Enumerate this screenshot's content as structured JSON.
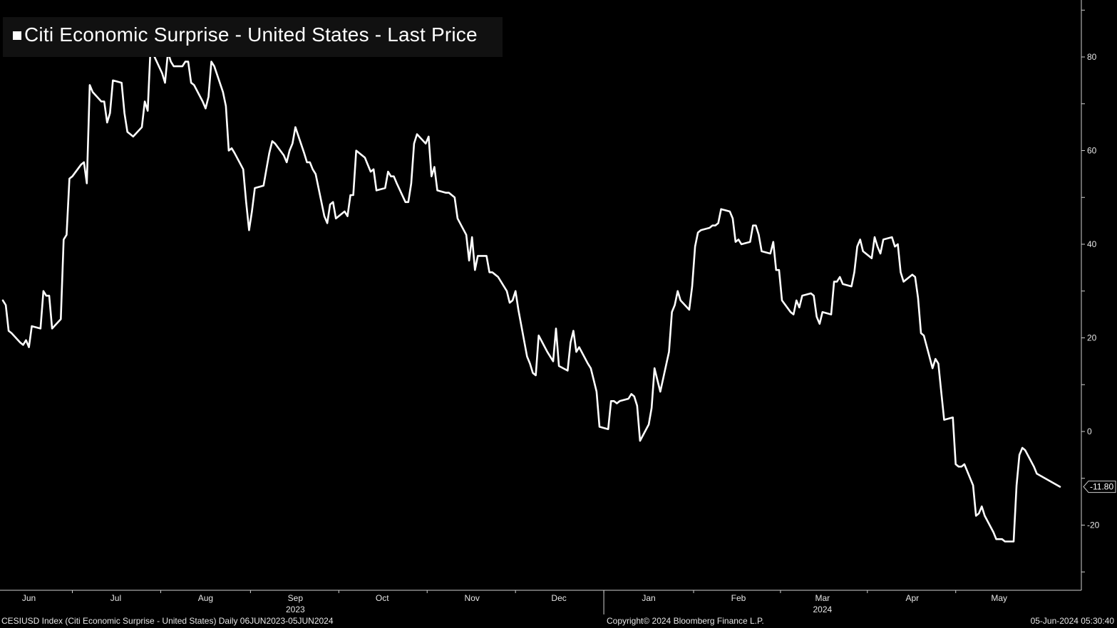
{
  "colors": {
    "background": "#000000",
    "line": "#ffffff",
    "axis": "#cfcfcf",
    "legend_background": "#111111"
  },
  "legend": {
    "label": "Citi Economic Surprise - United States - Last Price"
  },
  "footer": {
    "left": "CESIUSD Index (Citi Economic Surprise - United States)  Daily 06JUN2023-05JUN2024",
    "center": "Copyright© 2024 Bloomberg Finance L.P.",
    "right": "05-Jun-2024 05:30:40"
  },
  "chart_data": {
    "type": "line",
    "title": "",
    "xlabel": "",
    "ylabel": "",
    "ylim": [
      -30,
      90
    ],
    "y_ticks": [
      -20,
      0,
      20,
      40,
      60,
      80
    ],
    "y_axis_position": "right",
    "grid": false,
    "legend_position": "top-left",
    "last_value_label": "-11.80",
    "x_range": [
      "2023-06-06",
      "2024-06-05"
    ],
    "month_ticks": [
      {
        "label": "Jun",
        "date": "2023-06-15"
      },
      {
        "label": "Jul",
        "date": "2023-07-15"
      },
      {
        "label": "Aug",
        "date": "2023-08-15"
      },
      {
        "label": "Sep",
        "date": "2023-09-15"
      },
      {
        "label": "Oct",
        "date": "2023-10-15"
      },
      {
        "label": "Nov",
        "date": "2023-11-15"
      },
      {
        "label": "Dec",
        "date": "2023-12-15"
      },
      {
        "label": "Jan",
        "date": "2024-01-15"
      },
      {
        "label": "Feb",
        "date": "2024-02-15"
      },
      {
        "label": "Mar",
        "date": "2024-03-15"
      },
      {
        "label": "Apr",
        "date": "2024-04-15"
      },
      {
        "label": "May",
        "date": "2024-05-15"
      }
    ],
    "year_labels": [
      {
        "label": "2023",
        "date": "2023-09-15"
      },
      {
        "label": "2024",
        "date": "2024-03-15"
      }
    ],
    "series": [
      {
        "name": "Citi Economic Surprise - United States - Last Price",
        "points": [
          [
            "2023-06-06",
            28.0
          ],
          [
            "2023-06-07",
            27.0
          ],
          [
            "2023-06-08",
            21.5
          ],
          [
            "2023-06-09",
            21.0
          ],
          [
            "2023-06-12",
            19.0
          ],
          [
            "2023-06-13",
            18.5
          ],
          [
            "2023-06-14",
            19.5
          ],
          [
            "2023-06-15",
            18.0
          ],
          [
            "2023-06-16",
            22.5
          ],
          [
            "2023-06-19",
            22.0
          ],
          [
            "2023-06-20",
            30.0
          ],
          [
            "2023-06-21",
            29.0
          ],
          [
            "2023-06-22",
            29.0
          ],
          [
            "2023-06-23",
            22.0
          ],
          [
            "2023-06-26",
            24.0
          ],
          [
            "2023-06-27",
            41.0
          ],
          [
            "2023-06-28",
            42.0
          ],
          [
            "2023-06-29",
            54.0
          ],
          [
            "2023-06-30",
            54.5
          ],
          [
            "2023-07-03",
            57.0
          ],
          [
            "2023-07-04",
            57.5
          ],
          [
            "2023-07-05",
            53.0
          ],
          [
            "2023-07-06",
            74.0
          ],
          [
            "2023-07-07",
            72.5
          ],
          [
            "2023-07-10",
            70.5
          ],
          [
            "2023-07-11",
            70.5
          ],
          [
            "2023-07-12",
            66.0
          ],
          [
            "2023-07-13",
            68.0
          ],
          [
            "2023-07-14",
            75.0
          ],
          [
            "2023-07-17",
            74.5
          ],
          [
            "2023-07-18",
            68.0
          ],
          [
            "2023-07-19",
            64.0
          ],
          [
            "2023-07-20",
            63.5
          ],
          [
            "2023-07-21",
            63.0
          ],
          [
            "2023-07-24",
            65.0
          ],
          [
            "2023-07-25",
            70.5
          ],
          [
            "2023-07-26",
            68.5
          ],
          [
            "2023-07-27",
            82.0
          ],
          [
            "2023-07-28",
            80.5
          ],
          [
            "2023-07-31",
            76.5
          ],
          [
            "2023-08-01",
            74.5
          ],
          [
            "2023-08-02",
            81.0
          ],
          [
            "2023-08-03",
            79.0
          ],
          [
            "2023-08-04",
            78.0
          ],
          [
            "2023-08-07",
            78.0
          ],
          [
            "2023-08-08",
            79.0
          ],
          [
            "2023-08-09",
            79.0
          ],
          [
            "2023-08-10",
            74.5
          ],
          [
            "2023-08-11",
            74.0
          ],
          [
            "2023-08-14",
            70.5
          ],
          [
            "2023-08-15",
            69.0
          ],
          [
            "2023-08-16",
            71.5
          ],
          [
            "2023-08-17",
            79.0
          ],
          [
            "2023-08-18",
            78.0
          ],
          [
            "2023-08-21",
            72.5
          ],
          [
            "2023-08-22",
            69.5
          ],
          [
            "2023-08-23",
            60.0
          ],
          [
            "2023-08-24",
            60.5
          ],
          [
            "2023-08-25",
            59.5
          ],
          [
            "2023-08-28",
            56.0
          ],
          [
            "2023-08-29",
            49.0
          ],
          [
            "2023-08-30",
            43.0
          ],
          [
            "2023-08-31",
            47.0
          ],
          [
            "2023-09-01",
            52.0
          ],
          [
            "2023-09-04",
            52.5
          ],
          [
            "2023-09-05",
            56.0
          ],
          [
            "2023-09-06",
            59.5
          ],
          [
            "2023-09-07",
            62.0
          ],
          [
            "2023-09-08",
            61.5
          ],
          [
            "2023-09-11",
            59.0
          ],
          [
            "2023-09-12",
            57.5
          ],
          [
            "2023-09-13",
            60.0
          ],
          [
            "2023-09-14",
            61.5
          ],
          [
            "2023-09-15",
            65.0
          ],
          [
            "2023-09-18",
            59.5
          ],
          [
            "2023-09-19",
            57.5
          ],
          [
            "2023-09-20",
            57.5
          ],
          [
            "2023-09-21",
            56.0
          ],
          [
            "2023-09-22",
            55.0
          ],
          [
            "2023-09-25",
            46.0
          ],
          [
            "2023-09-26",
            44.5
          ],
          [
            "2023-09-27",
            48.5
          ],
          [
            "2023-09-28",
            49.0
          ],
          [
            "2023-09-29",
            45.5
          ],
          [
            "2023-10-02",
            47.0
          ],
          [
            "2023-10-03",
            46.0
          ],
          [
            "2023-10-04",
            50.5
          ],
          [
            "2023-10-05",
            50.5
          ],
          [
            "2023-10-06",
            60.0
          ],
          [
            "2023-10-09",
            58.5
          ],
          [
            "2023-10-10",
            57.0
          ],
          [
            "2023-10-11",
            55.5
          ],
          [
            "2023-10-12",
            56.0
          ],
          [
            "2023-10-13",
            51.5
          ],
          [
            "2023-10-16",
            52.0
          ],
          [
            "2023-10-17",
            55.5
          ],
          [
            "2023-10-18",
            54.5
          ],
          [
            "2023-10-19",
            54.5
          ],
          [
            "2023-10-20",
            53.0
          ],
          [
            "2023-10-23",
            49.0
          ],
          [
            "2023-10-24",
            49.0
          ],
          [
            "2023-10-25",
            53.0
          ],
          [
            "2023-10-26",
            61.5
          ],
          [
            "2023-10-27",
            63.5
          ],
          [
            "2023-10-30",
            61.5
          ],
          [
            "2023-10-31",
            63.0
          ],
          [
            "2023-11-01",
            54.5
          ],
          [
            "2023-11-02",
            56.5
          ],
          [
            "2023-11-03",
            51.5
          ],
          [
            "2023-11-06",
            51.0
          ],
          [
            "2023-11-07",
            51.0
          ],
          [
            "2023-11-08",
            50.5
          ],
          [
            "2023-11-09",
            50.0
          ],
          [
            "2023-11-10",
            45.5
          ],
          [
            "2023-11-13",
            42.0
          ],
          [
            "2023-11-14",
            36.5
          ],
          [
            "2023-11-15",
            41.5
          ],
          [
            "2023-11-16",
            34.5
          ],
          [
            "2023-11-17",
            37.5
          ],
          [
            "2023-11-20",
            37.5
          ],
          [
            "2023-11-21",
            34.0
          ],
          [
            "2023-11-22",
            34.0
          ],
          [
            "2023-11-23",
            33.5
          ],
          [
            "2023-11-24",
            33.0
          ],
          [
            "2023-11-27",
            30.0
          ],
          [
            "2023-11-28",
            27.5
          ],
          [
            "2023-11-29",
            28.0
          ],
          [
            "2023-11-30",
            30.0
          ],
          [
            "2023-12-01",
            26.0
          ],
          [
            "2023-12-04",
            16.0
          ],
          [
            "2023-12-05",
            14.5
          ],
          [
            "2023-12-06",
            12.5
          ],
          [
            "2023-12-07",
            12.0
          ],
          [
            "2023-12-08",
            20.5
          ],
          [
            "2023-12-11",
            17.0
          ],
          [
            "2023-12-12",
            16.0
          ],
          [
            "2023-12-13",
            15.0
          ],
          [
            "2023-12-14",
            22.0
          ],
          [
            "2023-12-15",
            14.0
          ],
          [
            "2023-12-18",
            13.0
          ],
          [
            "2023-12-19",
            19.0
          ],
          [
            "2023-12-20",
            21.5
          ],
          [
            "2023-12-21",
            17.0
          ],
          [
            "2023-12-22",
            18.0
          ],
          [
            "2023-12-25",
            14.5
          ],
          [
            "2023-12-26",
            13.5
          ],
          [
            "2023-12-27",
            11.0
          ],
          [
            "2023-12-28",
            8.5
          ],
          [
            "2023-12-29",
            1.0
          ],
          [
            "2024-01-01",
            0.5
          ],
          [
            "2024-01-02",
            6.5
          ],
          [
            "2024-01-03",
            6.5
          ],
          [
            "2024-01-04",
            6.0
          ],
          [
            "2024-01-05",
            6.5
          ],
          [
            "2024-01-08",
            7.0
          ],
          [
            "2024-01-09",
            8.0
          ],
          [
            "2024-01-10",
            7.5
          ],
          [
            "2024-01-11",
            5.5
          ],
          [
            "2024-01-12",
            -2.0
          ],
          [
            "2024-01-15",
            1.5
          ],
          [
            "2024-01-16",
            5.0
          ],
          [
            "2024-01-17",
            13.5
          ],
          [
            "2024-01-18",
            11.0
          ],
          [
            "2024-01-19",
            8.5
          ],
          [
            "2024-01-22",
            17.0
          ],
          [
            "2024-01-23",
            25.5
          ],
          [
            "2024-01-24",
            27.0
          ],
          [
            "2024-01-25",
            30.0
          ],
          [
            "2024-01-26",
            28.0
          ],
          [
            "2024-01-29",
            26.0
          ],
          [
            "2024-01-30",
            31.0
          ],
          [
            "2024-01-31",
            39.5
          ],
          [
            "2024-02-01",
            42.5
          ],
          [
            "2024-02-02",
            43.0
          ],
          [
            "2024-02-05",
            43.5
          ],
          [
            "2024-02-06",
            44.0
          ],
          [
            "2024-02-07",
            44.0
          ],
          [
            "2024-02-08",
            44.5
          ],
          [
            "2024-02-09",
            47.5
          ],
          [
            "2024-02-12",
            47.0
          ],
          [
            "2024-02-13",
            45.5
          ],
          [
            "2024-02-14",
            40.5
          ],
          [
            "2024-02-15",
            41.0
          ],
          [
            "2024-02-16",
            40.0
          ],
          [
            "2024-02-19",
            40.5
          ],
          [
            "2024-02-20",
            44.0
          ],
          [
            "2024-02-21",
            44.0
          ],
          [
            "2024-02-22",
            42.0
          ],
          [
            "2024-02-23",
            38.5
          ],
          [
            "2024-02-26",
            38.0
          ],
          [
            "2024-02-27",
            40.5
          ],
          [
            "2024-02-28",
            34.5
          ],
          [
            "2024-02-29",
            34.5
          ],
          [
            "2024-03-01",
            28.0
          ],
          [
            "2024-03-04",
            25.5
          ],
          [
            "2024-03-05",
            25.0
          ],
          [
            "2024-03-06",
            28.0
          ],
          [
            "2024-03-07",
            26.5
          ],
          [
            "2024-03-08",
            29.0
          ],
          [
            "2024-03-11",
            29.5
          ],
          [
            "2024-03-12",
            29.0
          ],
          [
            "2024-03-13",
            24.5
          ],
          [
            "2024-03-14",
            23.0
          ],
          [
            "2024-03-15",
            25.5
          ],
          [
            "2024-03-18",
            25.0
          ],
          [
            "2024-03-19",
            32.0
          ],
          [
            "2024-03-20",
            32.0
          ],
          [
            "2024-03-21",
            33.0
          ],
          [
            "2024-03-22",
            31.5
          ],
          [
            "2024-03-25",
            31.0
          ],
          [
            "2024-03-26",
            34.0
          ],
          [
            "2024-03-27",
            39.5
          ],
          [
            "2024-03-28",
            41.0
          ],
          [
            "2024-03-29",
            38.5
          ],
          [
            "2024-04-01",
            37.0
          ],
          [
            "2024-04-02",
            41.5
          ],
          [
            "2024-04-03",
            39.5
          ],
          [
            "2024-04-04",
            38.0
          ],
          [
            "2024-04-05",
            41.0
          ],
          [
            "2024-04-08",
            41.5
          ],
          [
            "2024-04-09",
            39.5
          ],
          [
            "2024-04-10",
            40.0
          ],
          [
            "2024-04-11",
            34.0
          ],
          [
            "2024-04-12",
            32.0
          ],
          [
            "2024-04-15",
            33.5
          ],
          [
            "2024-04-16",
            33.0
          ],
          [
            "2024-04-17",
            28.5
          ],
          [
            "2024-04-18",
            21.0
          ],
          [
            "2024-04-19",
            20.5
          ],
          [
            "2024-04-22",
            13.5
          ],
          [
            "2024-04-23",
            15.5
          ],
          [
            "2024-04-24",
            14.5
          ],
          [
            "2024-04-25",
            8.5
          ],
          [
            "2024-04-26",
            2.5
          ],
          [
            "2024-04-29",
            3.0
          ],
          [
            "2024-04-30",
            -7.0
          ],
          [
            "2024-05-01",
            -7.5
          ],
          [
            "2024-05-02",
            -7.5
          ],
          [
            "2024-05-03",
            -7.0
          ],
          [
            "2024-05-06",
            -11.5
          ],
          [
            "2024-05-07",
            -18.0
          ],
          [
            "2024-05-08",
            -17.5
          ],
          [
            "2024-05-09",
            -16.0
          ],
          [
            "2024-05-10",
            -18.0
          ],
          [
            "2024-05-13",
            -21.5
          ],
          [
            "2024-05-14",
            -23.0
          ],
          [
            "2024-05-15",
            -23.0
          ],
          [
            "2024-05-16",
            -23.0
          ],
          [
            "2024-05-17",
            -23.5
          ],
          [
            "2024-05-20",
            -23.5
          ],
          [
            "2024-05-21",
            -11.5
          ],
          [
            "2024-05-22",
            -5.0
          ],
          [
            "2024-05-23",
            -3.5
          ],
          [
            "2024-05-24",
            -4.0
          ],
          [
            "2024-05-27",
            -7.5
          ],
          [
            "2024-05-28",
            -9.0
          ],
          [
            "2024-06-05",
            -11.8
          ]
        ]
      }
    ]
  }
}
